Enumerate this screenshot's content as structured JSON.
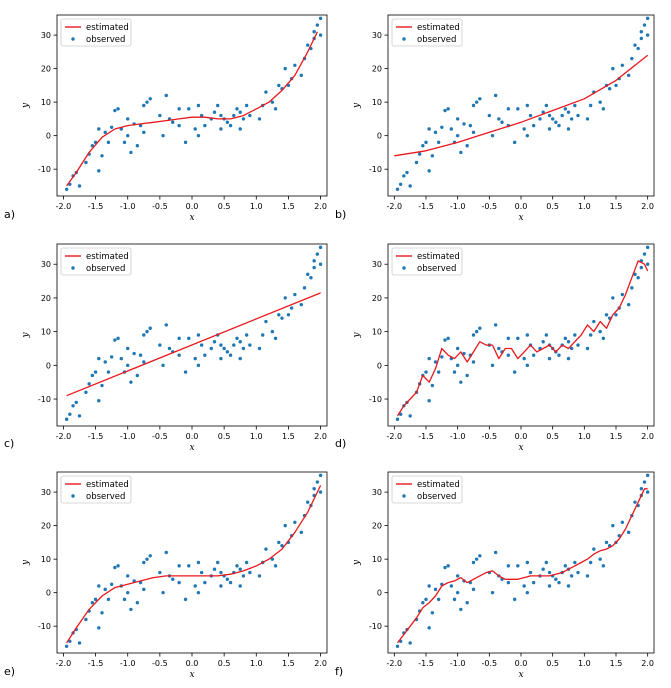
{
  "colors": {
    "estimated": "#e8191d",
    "observed": "#1f77b4",
    "axis": "#000000",
    "legend_border": "#cccccc"
  },
  "observed": {
    "x": [
      -1.95,
      -1.9,
      -1.85,
      -1.8,
      -1.75,
      -1.65,
      -1.6,
      -1.55,
      -1.5,
      -1.45,
      -1.45,
      -1.4,
      -1.35,
      -1.3,
      -1.25,
      -1.2,
      -1.15,
      -1.1,
      -1.05,
      -1.0,
      -1.0,
      -0.95,
      -0.9,
      -0.85,
      -0.8,
      -0.75,
      -0.75,
      -0.7,
      -0.65,
      -0.5,
      -0.45,
      -0.4,
      -0.35,
      -0.3,
      -0.2,
      -0.2,
      -0.1,
      -0.05,
      0.05,
      0.1,
      0.1,
      0.15,
      0.2,
      0.3,
      0.35,
      0.4,
      0.45,
      0.45,
      0.5,
      0.55,
      0.6,
      0.65,
      0.7,
      0.75,
      0.75,
      0.8,
      0.85,
      0.9,
      1.05,
      1.1,
      1.15,
      1.25,
      1.3,
      1.35,
      1.4,
      1.45,
      1.5,
      1.55,
      1.6,
      1.7,
      1.75,
      1.8,
      1.85,
      1.9,
      1.9,
      1.95,
      2.0,
      2.0
    ],
    "y": [
      -16,
      -14.5,
      -12,
      -11,
      -15,
      -8,
      -5.5,
      -3,
      -2,
      2,
      -10.5,
      -6,
      1,
      -2,
      2.5,
      7.5,
      8,
      2,
      -2,
      5,
      0,
      -5,
      3.5,
      -3,
      3,
      9,
      1,
      10,
      11,
      6,
      0,
      12,
      5,
      4,
      3,
      8,
      -2,
      8,
      2,
      0,
      9,
      6,
      3,
      5,
      7,
      9,
      6,
      2,
      5,
      4,
      3,
      6,
      8,
      7,
      2,
      5,
      9,
      6,
      5,
      9,
      13,
      10,
      8,
      15,
      14,
      20,
      15,
      17,
      21,
      18,
      23,
      27,
      26,
      29,
      31,
      33,
      35,
      30
    ]
  },
  "panels": [
    {
      "id": "a",
      "label": "a)",
      "legend": {
        "estimated": "estimated",
        "observed": "observed"
      }
    },
    {
      "id": "b",
      "label": "b)",
      "legend": {
        "estimated": "estimated",
        "observed": "observed"
      }
    },
    {
      "id": "c",
      "label": "c)",
      "legend": {
        "estimated": "estimated",
        "observed": "observed"
      }
    },
    {
      "id": "d",
      "label": "d)",
      "legend": {
        "estimated": "estimated",
        "observed": "observed"
      }
    },
    {
      "id": "e",
      "label": "e)",
      "legend": {
        "estimated": "estimated",
        "observed": "observed"
      }
    },
    {
      "id": "f",
      "label": "f)",
      "legend": {
        "estimated": "estimated",
        "observed": "observed"
      }
    }
  ],
  "chart_data": [
    {
      "type": "line",
      "panel": "a",
      "title": "",
      "xlabel": "x",
      "ylabel": "y",
      "xlim": [
        -2.1,
        2.1
      ],
      "ylim": [
        -18,
        36
      ],
      "xticks": [
        "-2.0",
        "-1.5",
        "-1.0",
        "-0.5",
        "0.0",
        "0.5",
        "1.0",
        "1.5",
        "2.0"
      ],
      "yticks": [
        "-10",
        "0",
        "10",
        "20",
        "30"
      ],
      "legend": "top-left",
      "series": [
        {
          "name": "estimated",
          "x": [
            -1.95,
            -1.8,
            -1.6,
            -1.4,
            -1.2,
            -1.0,
            -0.8,
            -0.6,
            -0.4,
            -0.2,
            0.0,
            0.2,
            0.4,
            0.6,
            0.8,
            1.0,
            1.2,
            1.4,
            1.6,
            1.8,
            1.95
          ],
          "y": [
            -15,
            -11,
            -5,
            -0.5,
            2,
            3,
            3.5,
            4,
            4.5,
            5,
            5.5,
            5.5,
            5,
            5,
            6,
            8,
            10,
            13.5,
            18,
            25,
            31
          ]
        }
      ]
    },
    {
      "type": "line",
      "panel": "b",
      "title": "",
      "xlabel": "x",
      "ylabel": "y",
      "xlim": [
        -2.1,
        2.1
      ],
      "ylim": [
        -18,
        36
      ],
      "xticks": [
        "-2.0",
        "-1.5",
        "-1.0",
        "-0.5",
        "0.0",
        "0.5",
        "1.0",
        "1.5",
        "2.0"
      ],
      "yticks": [
        "-10",
        "0",
        "10",
        "20",
        "30"
      ],
      "legend": "top-left",
      "series": [
        {
          "name": "estimated",
          "x": [
            -2.0,
            -1.5,
            -1.0,
            -0.5,
            0.0,
            0.5,
            1.0,
            1.5,
            2.0
          ],
          "y": [
            -6,
            -4.5,
            -2,
            1,
            4,
            7.5,
            11,
            16.5,
            24
          ]
        }
      ]
    },
    {
      "type": "line",
      "panel": "c",
      "title": "",
      "xlabel": "x",
      "ylabel": "y",
      "xlim": [
        -2.1,
        2.1
      ],
      "ylim": [
        -18,
        36
      ],
      "xticks": [
        "-2.0",
        "-1.5",
        "-1.0",
        "-0.5",
        "0.0",
        "0.5",
        "1.0",
        "1.5",
        "2.0"
      ],
      "yticks": [
        "-10",
        "0",
        "10",
        "20",
        "30"
      ],
      "legend": "top-left",
      "series": [
        {
          "name": "estimated",
          "x": [
            -1.95,
            2.0
          ],
          "y": [
            -9,
            21.5
          ]
        }
      ]
    },
    {
      "type": "line",
      "panel": "d",
      "title": "",
      "xlabel": "x",
      "ylabel": "y",
      "xlim": [
        -2.1,
        2.1
      ],
      "ylim": [
        -18,
        36
      ],
      "xticks": [
        "-2.0",
        "-1.5",
        "-1.0",
        "-0.5",
        "0.0",
        "0.5",
        "1.0",
        "1.5",
        "2.0"
      ],
      "yticks": [
        "-10",
        "0",
        "10",
        "20",
        "30"
      ],
      "legend": "top-left",
      "series": [
        {
          "name": "estimated",
          "x": [
            -1.95,
            -1.85,
            -1.75,
            -1.65,
            -1.55,
            -1.45,
            -1.35,
            -1.25,
            -1.15,
            -1.05,
            -0.95,
            -0.85,
            -0.75,
            -0.65,
            -0.55,
            -0.45,
            -0.35,
            -0.25,
            -0.15,
            -0.05,
            0.05,
            0.15,
            0.25,
            0.35,
            0.45,
            0.55,
            0.65,
            0.75,
            0.85,
            0.95,
            1.05,
            1.15,
            1.25,
            1.35,
            1.45,
            1.55,
            1.65,
            1.75,
            1.85,
            1.95,
            2.0
          ],
          "y": [
            -15,
            -12,
            -10,
            -8,
            -3,
            -5,
            -1,
            5,
            3,
            2,
            4,
            1,
            4,
            7,
            6,
            6,
            2,
            5,
            5,
            2,
            4,
            6,
            4,
            5,
            6,
            4,
            6,
            5,
            7,
            9,
            12,
            10,
            13,
            11,
            15,
            17,
            21,
            26,
            31,
            30,
            28
          ]
        }
      ]
    },
    {
      "type": "line",
      "panel": "e",
      "title": "",
      "xlabel": "x",
      "ylabel": "y",
      "xlim": [
        -2.1,
        2.1
      ],
      "ylim": [
        -18,
        36
      ],
      "xticks": [
        "-2.0",
        "-1.5",
        "-1.0",
        "-0.5",
        "0.0",
        "0.5",
        "1.0",
        "1.5",
        "2.0"
      ],
      "yticks": [
        "-10",
        "0",
        "10",
        "20",
        "30"
      ],
      "legend": "top-left",
      "series": [
        {
          "name": "estimated",
          "x": [
            -1.95,
            -1.8,
            -1.6,
            -1.4,
            -1.2,
            -1.0,
            -0.8,
            -0.6,
            -0.4,
            -0.2,
            0.0,
            0.2,
            0.4,
            0.6,
            0.8,
            1.0,
            1.2,
            1.4,
            1.6,
            1.8,
            2.0
          ],
          "y": [
            -15,
            -10.5,
            -5,
            -1,
            1.5,
            2.5,
            3.5,
            4.5,
            5,
            5,
            5,
            5,
            5,
            5.5,
            6.5,
            8,
            10,
            13,
            18,
            24,
            32
          ]
        }
      ]
    },
    {
      "type": "line",
      "panel": "f",
      "title": "",
      "xlabel": "x",
      "ylabel": "y",
      "xlim": [
        -2.1,
        2.1
      ],
      "ylim": [
        -18,
        36
      ],
      "xticks": [
        "-2.0",
        "-1.5",
        "-1.0",
        "-0.5",
        "0.0",
        "0.5",
        "1.0",
        "1.5",
        "2.0"
      ],
      "yticks": [
        "-10",
        "0",
        "10",
        "20",
        "30"
      ],
      "legend": "top-left",
      "series": [
        {
          "name": "estimated",
          "x": [
            -1.95,
            -1.85,
            -1.75,
            -1.65,
            -1.55,
            -1.45,
            -1.35,
            -1.25,
            -1.15,
            -1.05,
            -0.95,
            -0.85,
            -0.75,
            -0.65,
            -0.55,
            -0.45,
            -0.35,
            -0.25,
            -0.15,
            -0.05,
            0.05,
            0.15,
            0.25,
            0.35,
            0.45,
            0.55,
            0.65,
            0.75,
            0.85,
            0.95,
            1.05,
            1.15,
            1.25,
            1.35,
            1.45,
            1.55,
            1.65,
            1.75,
            1.85,
            1.95,
            2.0
          ],
          "y": [
            -15,
            -12.5,
            -10,
            -7.5,
            -4.5,
            -3,
            -1,
            2,
            3,
            3.5,
            4.5,
            3,
            4,
            5,
            6,
            6.5,
            5,
            4,
            4,
            4,
            4.5,
            5,
            5,
            5,
            5,
            5.5,
            6,
            7,
            8,
            9,
            10,
            11.5,
            12.5,
            13,
            14,
            16,
            19,
            23,
            27,
            31,
            31
          ]
        }
      ]
    }
  ]
}
